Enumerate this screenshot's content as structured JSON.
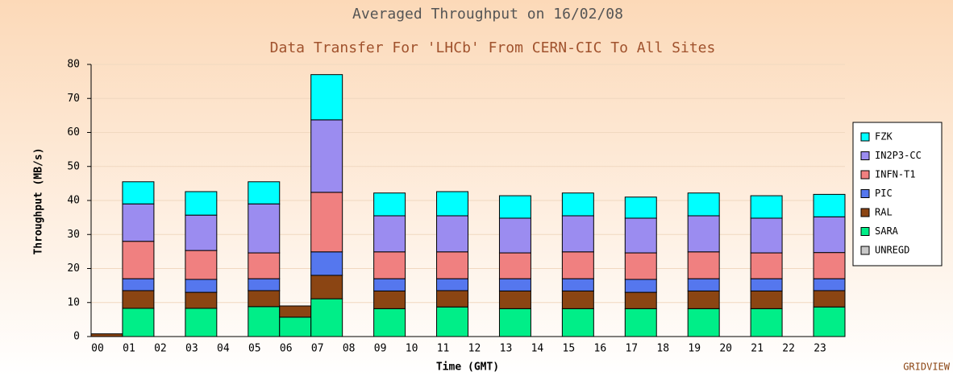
{
  "chart_data": {
    "type": "stacked_bar",
    "title": "Averaged Throughput on 16/02/08",
    "subtitle": "Data Transfer For 'LHCb' From CERN-CIC To All Sites",
    "y_label": "Throughput (MB/s)",
    "x_label": "Time (GMT)",
    "credit": "GRIDVIEW",
    "categories": [
      "00",
      "01",
      "02",
      "03",
      "04",
      "05",
      "06",
      "07",
      "08",
      "09",
      "10",
      "11",
      "12",
      "13",
      "14",
      "15",
      "16",
      "17",
      "18",
      "19",
      "20",
      "21",
      "22",
      "23"
    ],
    "series": [
      {
        "name": "UNREGD",
        "color": "#c8c8c8",
        "values": [
          null,
          null,
          null,
          null,
          null,
          null,
          null,
          null,
          null,
          null,
          null,
          null,
          null,
          null,
          null,
          null,
          null,
          null,
          null,
          null,
          null,
          null,
          null,
          null
        ]
      },
      {
        "name": "SARA",
        "color": "#00ee88",
        "values": [
          null,
          8.3,
          null,
          8.3,
          null,
          8.8,
          5.7,
          11.1,
          null,
          8.2,
          null,
          8.7,
          null,
          8.2,
          null,
          8.2,
          null,
          8.2,
          null,
          8.2,
          null,
          8.2,
          null,
          8.7
        ]
      },
      {
        "name": "RAL",
        "color": "#8b4513",
        "values": [
          0.8,
          5.2,
          null,
          4.7,
          null,
          4.7,
          3.3,
          6.9,
          null,
          5.2,
          null,
          4.8,
          null,
          5.2,
          null,
          5.2,
          null,
          4.8,
          null,
          5.2,
          null,
          5.2,
          null,
          4.8
        ]
      },
      {
        "name": "PIC",
        "color": "#5577ee",
        "values": [
          null,
          3.5,
          null,
          3.8,
          null,
          3.5,
          null,
          6.9,
          null,
          3.6,
          null,
          3.5,
          null,
          3.6,
          null,
          3.6,
          null,
          3.8,
          null,
          3.6,
          null,
          3.6,
          null,
          3.5
        ]
      },
      {
        "name": "INFN-T1",
        "color": "#f08080",
        "values": [
          null,
          11,
          null,
          8.5,
          null,
          7.6,
          null,
          17.5,
          null,
          7.9,
          null,
          7.9,
          null,
          7.6,
          null,
          7.9,
          null,
          7.8,
          null,
          7.9,
          null,
          7.6,
          null,
          7.7
        ]
      },
      {
        "name": "IN2P3-CC",
        "color": "#9b8cf0",
        "values": [
          null,
          11,
          null,
          10.4,
          null,
          14.4,
          null,
          21.3,
          null,
          10.6,
          null,
          10.6,
          null,
          10.2,
          null,
          10.6,
          null,
          10.2,
          null,
          10.6,
          null,
          10.2,
          null,
          10.5
        ]
      },
      {
        "name": "FZK",
        "color": "#00ffff",
        "values": [
          null,
          6.5,
          null,
          6.9,
          null,
          6.5,
          null,
          13.3,
          null,
          6.7,
          null,
          7.1,
          null,
          6.6,
          null,
          6.7,
          null,
          6.2,
          null,
          6.7,
          null,
          6.6,
          null,
          6.6
        ]
      }
    ],
    "ylim": [
      0,
      80
    ],
    "yticks": [
      0,
      10,
      20,
      30,
      40,
      50,
      60,
      70,
      80
    ],
    "grid": true
  }
}
